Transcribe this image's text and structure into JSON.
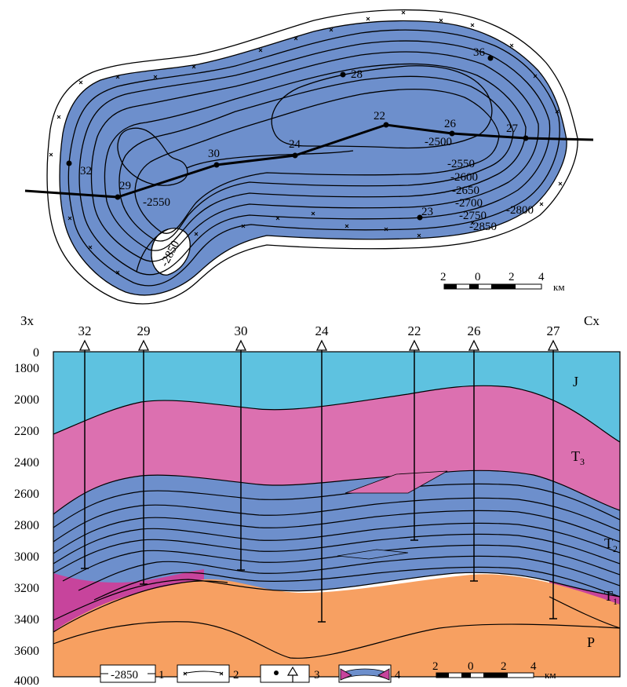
{
  "map": {
    "contour_labels": [
      "-2500",
      "-2550",
      "-2600",
      "-2650",
      "-2700",
      "-2750",
      "-2800",
      "-2850"
    ],
    "closure_label_west": "-2550",
    "closure_label_south": "-2850",
    "wells": [
      {
        "id": "32"
      },
      {
        "id": "29"
      },
      {
        "id": "30"
      },
      {
        "id": "24"
      },
      {
        "id": "22"
      },
      {
        "id": "26"
      },
      {
        "id": "27"
      },
      {
        "id": "28"
      },
      {
        "id": "36"
      },
      {
        "id": "23"
      }
    ],
    "scale": {
      "ticks": [
        "2",
        "0",
        "2",
        "4"
      ],
      "unit": "км"
    }
  },
  "section": {
    "left_label": "Зх",
    "right_label": "Сх",
    "y_axis_ticks": [
      "0",
      "1800",
      "2000",
      "2200",
      "2400",
      "2600",
      "2800",
      "3000",
      "3200",
      "3400",
      "3600",
      "4000"
    ],
    "wells": [
      {
        "id": "32",
        "bottom_depth": 3080
      },
      {
        "id": "29",
        "bottom_depth": 3180
      },
      {
        "id": "30",
        "bottom_depth": 3090
      },
      {
        "id": "24",
        "bottom_depth": 3420
      },
      {
        "id": "22",
        "bottom_depth": 2900
      },
      {
        "id": "26",
        "bottom_depth": 3160
      },
      {
        "id": "27",
        "bottom_depth": 3400
      }
    ],
    "layers": [
      {
        "label": "J",
        "color": "#5ec2e0"
      },
      {
        "label": "T",
        "sub": "3",
        "color": "#dc70b0"
      },
      {
        "label": "T",
        "sub": "2",
        "color": "#6d8fcc"
      },
      {
        "label": "T",
        "sub": "1",
        "color": "#c7449c"
      },
      {
        "label": "P",
        "color": "#f7a062"
      }
    ]
  },
  "legend": {
    "items": [
      {
        "number": "1",
        "sample": "-2850"
      },
      {
        "number": "2",
        "sample": ""
      },
      {
        "number": "3",
        "sample": ""
      },
      {
        "number": "4",
        "sample": ""
      }
    ],
    "scale": {
      "ticks": [
        "2",
        "0",
        "2",
        "4"
      ],
      "unit": "км"
    }
  },
  "colors": {
    "reservoir_blue": "#6d8fcc",
    "jurassic": "#5ec2e0",
    "triassic_upper": "#dc70b0",
    "triassic_lower": "#c7449c",
    "permian": "#f7a062"
  }
}
